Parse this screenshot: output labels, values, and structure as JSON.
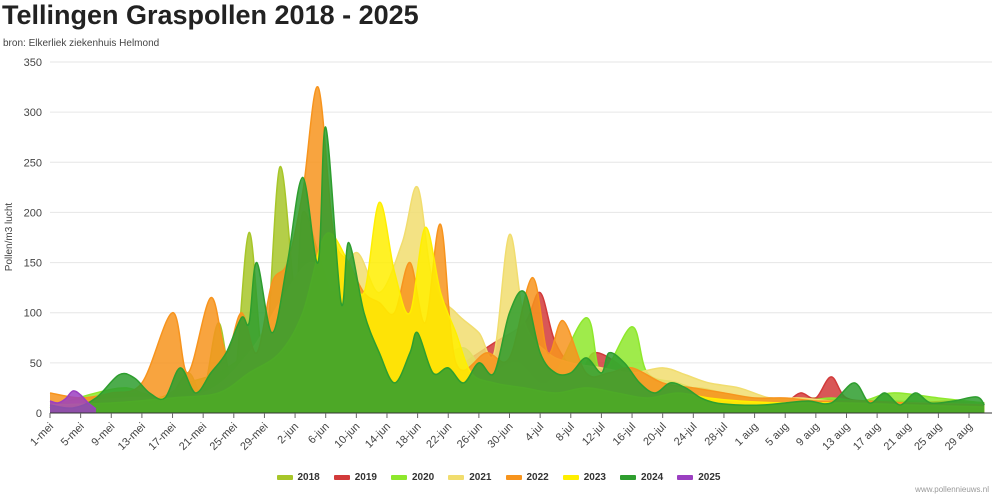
{
  "header": {
    "title": "Tellingen Graspollen 2018 - 2025",
    "subtitle": "bron: Elkerliek ziekenhuis Helmond"
  },
  "credit": "www.pollennieuws.nl",
  "chart_data": {
    "type": "area",
    "title": "Tellingen Graspollen 2018 - 2025",
    "subtitle": "bron: Elkerliek ziekenhuis Helmond",
    "xlabel": "",
    "ylabel": "Pollen/m3 lucht",
    "ylim": [
      0,
      350
    ],
    "yticks": [
      0,
      50,
      100,
      150,
      200,
      250,
      300,
      350
    ],
    "grid": true,
    "legend_position": "bottom",
    "x_start": "1-mei",
    "x_days": 123,
    "x_tick_step_days": 4,
    "x_tick_labels": [
      "1-mei",
      "5-mei",
      "9-mei",
      "13-mei",
      "17-mei",
      "21-mei",
      "25-mei",
      "29-mei",
      "2-jun",
      "6-jun",
      "10-jun",
      "14-jun",
      "18-jun",
      "22-jun",
      "26-jun",
      "30-jun",
      "4-jul",
      "8-jul",
      "12-jul",
      "16-jul",
      "20-jul",
      "24-jul",
      "28-jul",
      "1 aug",
      "5 aug",
      "9 aug",
      "13 aug",
      "17 aug",
      "21 aug",
      "25 aug",
      "29 aug"
    ],
    "series": [
      {
        "name": "2018",
        "color": "#a7c629",
        "points": [
          [
            0,
            5
          ],
          [
            6,
            15
          ],
          [
            12,
            20
          ],
          [
            15,
            10
          ],
          [
            18,
            40
          ],
          [
            20,
            20
          ],
          [
            22,
            90
          ],
          [
            24,
            30
          ],
          [
            26,
            180
          ],
          [
            28,
            50
          ],
          [
            30,
            245
          ],
          [
            32,
            120
          ],
          [
            33,
            200
          ],
          [
            35,
            160
          ],
          [
            37,
            110
          ],
          [
            39,
            60
          ],
          [
            41,
            90
          ],
          [
            43,
            40
          ],
          [
            46,
            60
          ],
          [
            49,
            35
          ],
          [
            52,
            25
          ],
          [
            56,
            20
          ],
          [
            60,
            40
          ],
          [
            64,
            30
          ],
          [
            68,
            20
          ],
          [
            72,
            15
          ],
          [
            76,
            20
          ],
          [
            80,
            15
          ],
          [
            84,
            25
          ],
          [
            88,
            20
          ],
          [
            92,
            15
          ],
          [
            96,
            12
          ],
          [
            100,
            15
          ],
          [
            105,
            10
          ],
          [
            110,
            12
          ],
          [
            115,
            10
          ],
          [
            122,
            8
          ]
        ]
      },
      {
        "name": "2019",
        "color": "#d23a3a",
        "points": [
          [
            0,
            8
          ],
          [
            20,
            15
          ],
          [
            30,
            20
          ],
          [
            40,
            25
          ],
          [
            50,
            30
          ],
          [
            55,
            55
          ],
          [
            58,
            70
          ],
          [
            62,
            90
          ],
          [
            64,
            120
          ],
          [
            66,
            70
          ],
          [
            69,
            40
          ],
          [
            71,
            60
          ],
          [
            74,
            50
          ],
          [
            77,
            30
          ],
          [
            80,
            25
          ],
          [
            84,
            15
          ],
          [
            88,
            15
          ],
          [
            92,
            15
          ],
          [
            96,
            12
          ],
          [
            98,
            20
          ],
          [
            100,
            15
          ],
          [
            102,
            36
          ],
          [
            104,
            15
          ],
          [
            108,
            12
          ],
          [
            112,
            10
          ],
          [
            118,
            12
          ],
          [
            122,
            10
          ]
        ]
      },
      {
        "name": "2020",
        "color": "#8ee82c",
        "points": [
          [
            0,
            5
          ],
          [
            5,
            18
          ],
          [
            10,
            25
          ],
          [
            14,
            15
          ],
          [
            18,
            30
          ],
          [
            22,
            40
          ],
          [
            26,
            60
          ],
          [
            30,
            80
          ],
          [
            34,
            110
          ],
          [
            38,
            120
          ],
          [
            42,
            80
          ],
          [
            46,
            60
          ],
          [
            50,
            50
          ],
          [
            54,
            65
          ],
          [
            57,
            40
          ],
          [
            61,
            50
          ],
          [
            65,
            30
          ],
          [
            70,
            95
          ],
          [
            72,
            40
          ],
          [
            76,
            86
          ],
          [
            78,
            40
          ],
          [
            82,
            30
          ],
          [
            86,
            20
          ],
          [
            90,
            15
          ],
          [
            94,
            15
          ],
          [
            98,
            12
          ],
          [
            102,
            15
          ],
          [
            106,
            12
          ],
          [
            110,
            20
          ],
          [
            116,
            15
          ],
          [
            122,
            10
          ]
        ]
      },
      {
        "name": "2021",
        "color": "#f1dd6e",
        "points": [
          [
            0,
            10
          ],
          [
            10,
            15
          ],
          [
            20,
            20
          ],
          [
            26,
            60
          ],
          [
            30,
            110
          ],
          [
            34,
            150
          ],
          [
            37,
            120
          ],
          [
            40,
            160
          ],
          [
            43,
            120
          ],
          [
            46,
            170
          ],
          [
            48,
            225
          ],
          [
            50,
            130
          ],
          [
            53,
            100
          ],
          [
            56,
            80
          ],
          [
            58,
            60
          ],
          [
            60,
            178
          ],
          [
            62,
            90
          ],
          [
            65,
            60
          ],
          [
            68,
            50
          ],
          [
            72,
            45
          ],
          [
            76,
            40
          ],
          [
            80,
            45
          ],
          [
            83,
            38
          ],
          [
            86,
            30
          ],
          [
            90,
            25
          ],
          [
            94,
            15
          ],
          [
            98,
            15
          ],
          [
            102,
            12
          ],
          [
            108,
            10
          ],
          [
            114,
            10
          ],
          [
            122,
            8
          ]
        ]
      },
      {
        "name": "2022",
        "color": "#f7941d",
        "points": [
          [
            0,
            20
          ],
          [
            4,
            15
          ],
          [
            8,
            20
          ],
          [
            12,
            30
          ],
          [
            16,
            100
          ],
          [
            18,
            40
          ],
          [
            21,
            115
          ],
          [
            23,
            60
          ],
          [
            25,
            100
          ],
          [
            27,
            60
          ],
          [
            29,
            130
          ],
          [
            31,
            150
          ],
          [
            33,
            220
          ],
          [
            35,
            325
          ],
          [
            37,
            180
          ],
          [
            39,
            150
          ],
          [
            41,
            120
          ],
          [
            43,
            110
          ],
          [
            45,
            100
          ],
          [
            47,
            150
          ],
          [
            49,
            90
          ],
          [
            51,
            188
          ],
          [
            53,
            50
          ],
          [
            57,
            60
          ],
          [
            60,
            55
          ],
          [
            63,
            135
          ],
          [
            65,
            60
          ],
          [
            67,
            92
          ],
          [
            70,
            40
          ],
          [
            73,
            40
          ],
          [
            76,
            45
          ],
          [
            80,
            30
          ],
          [
            84,
            25
          ],
          [
            88,
            20
          ],
          [
            92,
            15
          ],
          [
            96,
            15
          ],
          [
            100,
            12
          ],
          [
            106,
            12
          ],
          [
            112,
            10
          ],
          [
            122,
            8
          ]
        ]
      },
      {
        "name": "2023",
        "color": "#ffef00",
        "points": [
          [
            0,
            8
          ],
          [
            8,
            10
          ],
          [
            16,
            15
          ],
          [
            22,
            20
          ],
          [
            26,
            40
          ],
          [
            30,
            60
          ],
          [
            33,
            100
          ],
          [
            36,
            178
          ],
          [
            39,
            150
          ],
          [
            41,
            120
          ],
          [
            43,
            210
          ],
          [
            45,
            140
          ],
          [
            47,
            100
          ],
          [
            49,
            185
          ],
          [
            51,
            120
          ],
          [
            53,
            80
          ],
          [
            55,
            40
          ],
          [
            58,
            30
          ],
          [
            62,
            25
          ],
          [
            66,
            20
          ],
          [
            70,
            25
          ],
          [
            74,
            20
          ],
          [
            78,
            15
          ],
          [
            82,
            20
          ],
          [
            86,
            15
          ],
          [
            90,
            12
          ],
          [
            96,
            10
          ],
          [
            104,
            10
          ],
          [
            112,
            8
          ],
          [
            122,
            6
          ]
        ]
      },
      {
        "name": "2024",
        "color": "#2e9e2e",
        "points": [
          [
            0,
            8
          ],
          [
            3,
            5
          ],
          [
            6,
            15
          ],
          [
            9,
            38
          ],
          [
            11,
            35
          ],
          [
            13,
            20
          ],
          [
            15,
            15
          ],
          [
            17,
            45
          ],
          [
            19,
            20
          ],
          [
            21,
            40
          ],
          [
            23,
            60
          ],
          [
            25,
            95
          ],
          [
            26,
            90
          ],
          [
            27,
            150
          ],
          [
            29,
            80
          ],
          [
            31,
            150
          ],
          [
            33,
            235
          ],
          [
            35,
            150
          ],
          [
            36,
            285
          ],
          [
            38,
            110
          ],
          [
            39,
            170
          ],
          [
            41,
            100
          ],
          [
            43,
            60
          ],
          [
            45,
            30
          ],
          [
            47,
            60
          ],
          [
            48,
            80
          ],
          [
            50,
            40
          ],
          [
            52,
            45
          ],
          [
            54,
            30
          ],
          [
            56,
            50
          ],
          [
            58,
            40
          ],
          [
            60,
            100
          ],
          [
            62,
            120
          ],
          [
            64,
            60
          ],
          [
            66,
            40
          ],
          [
            68,
            40
          ],
          [
            70,
            55
          ],
          [
            72,
            40
          ],
          [
            73,
            60
          ],
          [
            75,
            50
          ],
          [
            77,
            30
          ],
          [
            79,
            20
          ],
          [
            81,
            30
          ],
          [
            83,
            25
          ],
          [
            85,
            15
          ],
          [
            87,
            10
          ],
          [
            90,
            8
          ],
          [
            93,
            8
          ],
          [
            96,
            10
          ],
          [
            99,
            12
          ],
          [
            102,
            10
          ],
          [
            105,
            30
          ],
          [
            107,
            10
          ],
          [
            109,
            20
          ],
          [
            111,
            8
          ],
          [
            113,
            20
          ],
          [
            115,
            10
          ],
          [
            118,
            12
          ],
          [
            121,
            16
          ],
          [
            122,
            8
          ]
        ]
      },
      {
        "name": "2025",
        "color": "#9b3fc1",
        "points": [
          [
            0,
            12
          ],
          [
            1,
            10
          ],
          [
            2,
            14
          ],
          [
            3,
            22
          ],
          [
            4,
            18
          ],
          [
            5,
            10
          ],
          [
            6,
            4
          ]
        ]
      }
    ]
  }
}
